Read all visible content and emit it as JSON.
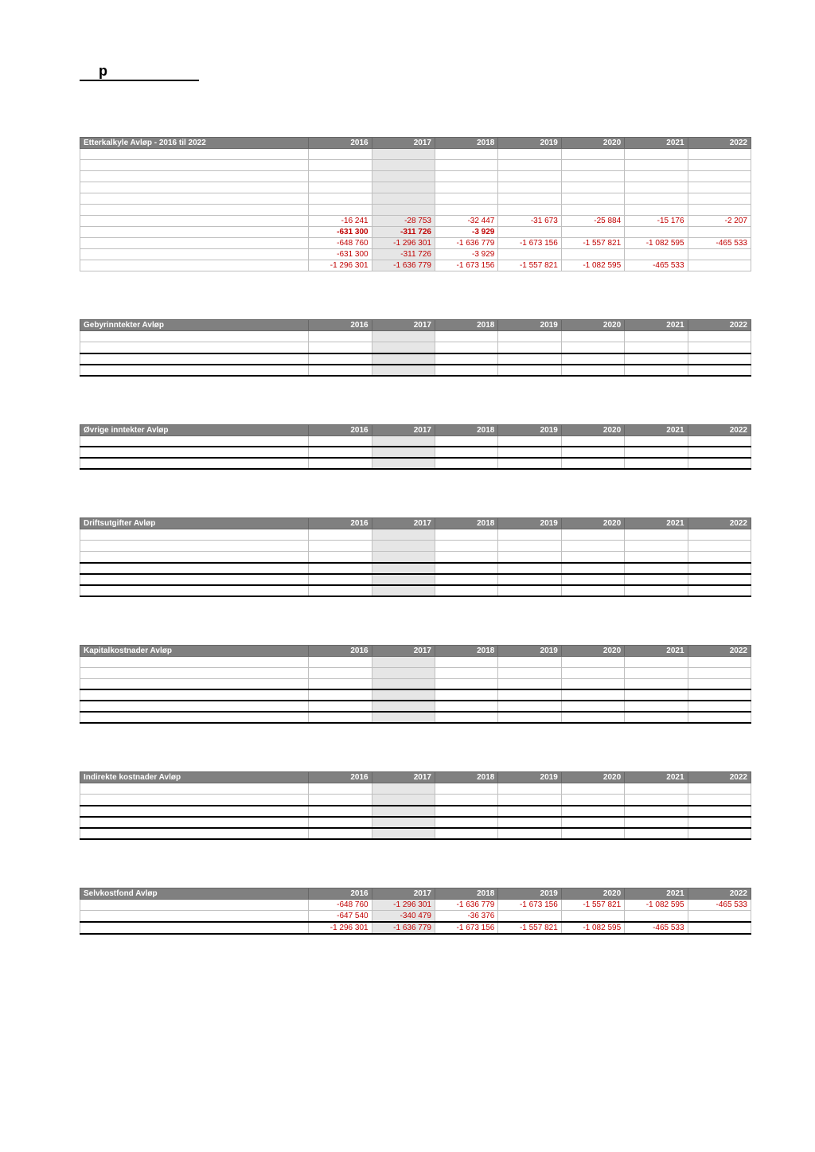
{
  "title_char": "p",
  "years": [
    "2016",
    "2017",
    "2018",
    "2019",
    "2020",
    "2021",
    "2022"
  ],
  "highlight_year_index": 1,
  "colors": {
    "header_bg": "#808080",
    "header_text": "#ffffff",
    "highlight_bg": "#e6e6e6",
    "negative_text": "#c00000",
    "border_light": "#bfbfbf",
    "border_dark": "#000000"
  },
  "tables": [
    {
      "id": "etterkalkyle",
      "header_label": "Etterkalkyle Avløp - 2016 til 2022",
      "boxed": true,
      "rows": [
        {
          "label": "",
          "cells": [
            "",
            "",
            "",
            "",
            "",
            "",
            ""
          ],
          "blank": true
        },
        {
          "label": "",
          "cells": [
            "",
            "",
            "",
            "",
            "",
            "",
            ""
          ],
          "blank": true
        },
        {
          "label": "",
          "cells": [
            "",
            "",
            "",
            "",
            "",
            "",
            ""
          ],
          "blank": true
        },
        {
          "label": "",
          "cells": [
            "",
            "",
            "",
            "",
            "",
            "",
            ""
          ],
          "blank": true
        },
        {
          "label": "",
          "cells": [
            "",
            "",
            "",
            "",
            "",
            "",
            ""
          ],
          "blank": true
        },
        {
          "label": "",
          "cells": [
            "",
            "",
            "",
            "",
            "",
            "",
            ""
          ],
          "blank": true
        },
        {
          "label": "",
          "cells": [
            "-16 241",
            "-28 753",
            "-32 447",
            "-31 673",
            "-25 884",
            "-15 176",
            "-2 207"
          ],
          "red": true
        },
        {
          "label": "",
          "cells": [
            "-631 300",
            "-311 726",
            "-3 929",
            "",
            "",
            "",
            ""
          ],
          "bold": true,
          "red": true
        },
        {
          "label": "",
          "cells": [
            "-648 760",
            "-1 296 301",
            "-1 636 779",
            "-1 673 156",
            "-1 557 821",
            "-1 082 595",
            "-465 533"
          ],
          "red": true
        },
        {
          "label": "",
          "cells": [
            "-631 300",
            "-311 726",
            "-3 929",
            "",
            "",
            "",
            ""
          ],
          "red": true
        },
        {
          "label": "",
          "cells": [
            "-1 296 301",
            "-1 636 779",
            "-1 673 156",
            "-1 557 821",
            "-1 082 595",
            "-465 533",
            ""
          ],
          "red": true
        }
      ]
    },
    {
      "id": "gebyr",
      "header_label": "Gebyrinntekter Avløp",
      "boxed": false,
      "rows": [
        {
          "label": "",
          "cells": [
            "",
            "",
            "",
            "",
            "",
            "",
            ""
          ],
          "blank": true
        },
        {
          "label": "",
          "cells": [
            "",
            "",
            "",
            "",
            "",
            "",
            ""
          ],
          "blank": true
        },
        {
          "label": "",
          "cells": [
            "",
            "",
            "",
            "",
            "",
            "",
            ""
          ],
          "blank": true,
          "strong_bottom": true,
          "strong_top": true
        },
        {
          "label": "",
          "cells": [
            "",
            "",
            "",
            "",
            "",
            "",
            ""
          ],
          "blank": true,
          "strong_bottom": true
        }
      ]
    },
    {
      "id": "ovrige",
      "header_label": "Øvrige inntekter Avløp",
      "boxed": false,
      "rows": [
        {
          "label": "",
          "cells": [
            "",
            "",
            "",
            "",
            "",
            "",
            ""
          ],
          "blank": true
        },
        {
          "label": "",
          "cells": [
            "",
            "",
            "",
            "",
            "",
            "",
            ""
          ],
          "blank": true,
          "strong_bottom": true,
          "strong_top": true
        },
        {
          "label": "",
          "cells": [
            "",
            "",
            "",
            "",
            "",
            "",
            ""
          ],
          "blank": true,
          "strong_bottom": true
        }
      ]
    },
    {
      "id": "drift",
      "header_label": "Driftsutgifter Avløp",
      "boxed": false,
      "rows": [
        {
          "label": "",
          "cells": [
            "",
            "",
            "",
            "",
            "",
            "",
            ""
          ],
          "blank": true
        },
        {
          "label": "",
          "cells": [
            "",
            "",
            "",
            "",
            "",
            "",
            ""
          ],
          "blank": true
        },
        {
          "label": "",
          "cells": [
            "",
            "",
            "",
            "",
            "",
            "",
            ""
          ],
          "blank": true
        },
        {
          "label": "",
          "cells": [
            "",
            "",
            "",
            "",
            "",
            "",
            ""
          ],
          "blank": true,
          "strong_bottom": true,
          "strong_top": true
        },
        {
          "label": "",
          "cells": [
            "",
            "",
            "",
            "",
            "",
            "",
            ""
          ],
          "blank": true
        },
        {
          "label": "",
          "cells": [
            "",
            "",
            "",
            "",
            "",
            "",
            ""
          ],
          "blank": true,
          "strong_bottom": true,
          "strong_top": true
        }
      ]
    },
    {
      "id": "kapital",
      "header_label": "Kapitalkostnader Avløp",
      "boxed": false,
      "rows": [
        {
          "label": "",
          "cells": [
            "",
            "",
            "",
            "",
            "",
            "",
            ""
          ],
          "blank": true
        },
        {
          "label": "",
          "cells": [
            "",
            "",
            "",
            "",
            "",
            "",
            ""
          ],
          "blank": true
        },
        {
          "label": "",
          "cells": [
            "",
            "",
            "",
            "",
            "",
            "",
            ""
          ],
          "blank": true
        },
        {
          "label": "",
          "cells": [
            "",
            "",
            "",
            "",
            "",
            "",
            ""
          ],
          "blank": true,
          "strong_bottom": true,
          "strong_top": true
        },
        {
          "label": "",
          "cells": [
            "",
            "",
            "",
            "",
            "",
            "",
            ""
          ],
          "blank": true
        },
        {
          "label": "",
          "cells": [
            "",
            "",
            "",
            "",
            "",
            "",
            ""
          ],
          "blank": true,
          "strong_bottom": true,
          "strong_top": true
        }
      ]
    },
    {
      "id": "indirekte",
      "header_label": "Indirekte kostnader Avløp",
      "boxed": false,
      "rows": [
        {
          "label": "",
          "cells": [
            "",
            "",
            "",
            "",
            "",
            "",
            ""
          ],
          "blank": true
        },
        {
          "label": "",
          "cells": [
            "",
            "",
            "",
            "",
            "",
            "",
            ""
          ],
          "blank": true
        },
        {
          "label": "",
          "cells": [
            "",
            "",
            "",
            "",
            "",
            "",
            ""
          ],
          "blank": true,
          "strong_bottom": true,
          "strong_top": true
        },
        {
          "label": "",
          "cells": [
            "",
            "",
            "",
            "",
            "",
            "",
            ""
          ],
          "blank": true
        },
        {
          "label": "",
          "cells": [
            "",
            "",
            "",
            "",
            "",
            "",
            ""
          ],
          "blank": true,
          "strong_bottom": true,
          "strong_top": true
        }
      ]
    },
    {
      "id": "selvkost",
      "header_label": "Selvkostfond Avløp",
      "boxed": false,
      "rows": [
        {
          "label": "",
          "cells": [
            "-648 760",
            "-1 296 301",
            "-1 636 779",
            "-1 673 156",
            "-1 557 821",
            "-1 082 595",
            "-465 533"
          ],
          "red": true
        },
        {
          "label": "",
          "cells": [
            "-647 540",
            "-340 479",
            "-36 376",
            "",
            "",
            "",
            ""
          ],
          "red": true
        },
        {
          "label": "",
          "cells": [
            "-1 296 301",
            "-1 636 779",
            "-1 673 156",
            "-1 557 821",
            "-1 082 595",
            "-465 533",
            ""
          ],
          "red": true,
          "strong_bottom": true,
          "strong_top": true
        }
      ]
    }
  ]
}
